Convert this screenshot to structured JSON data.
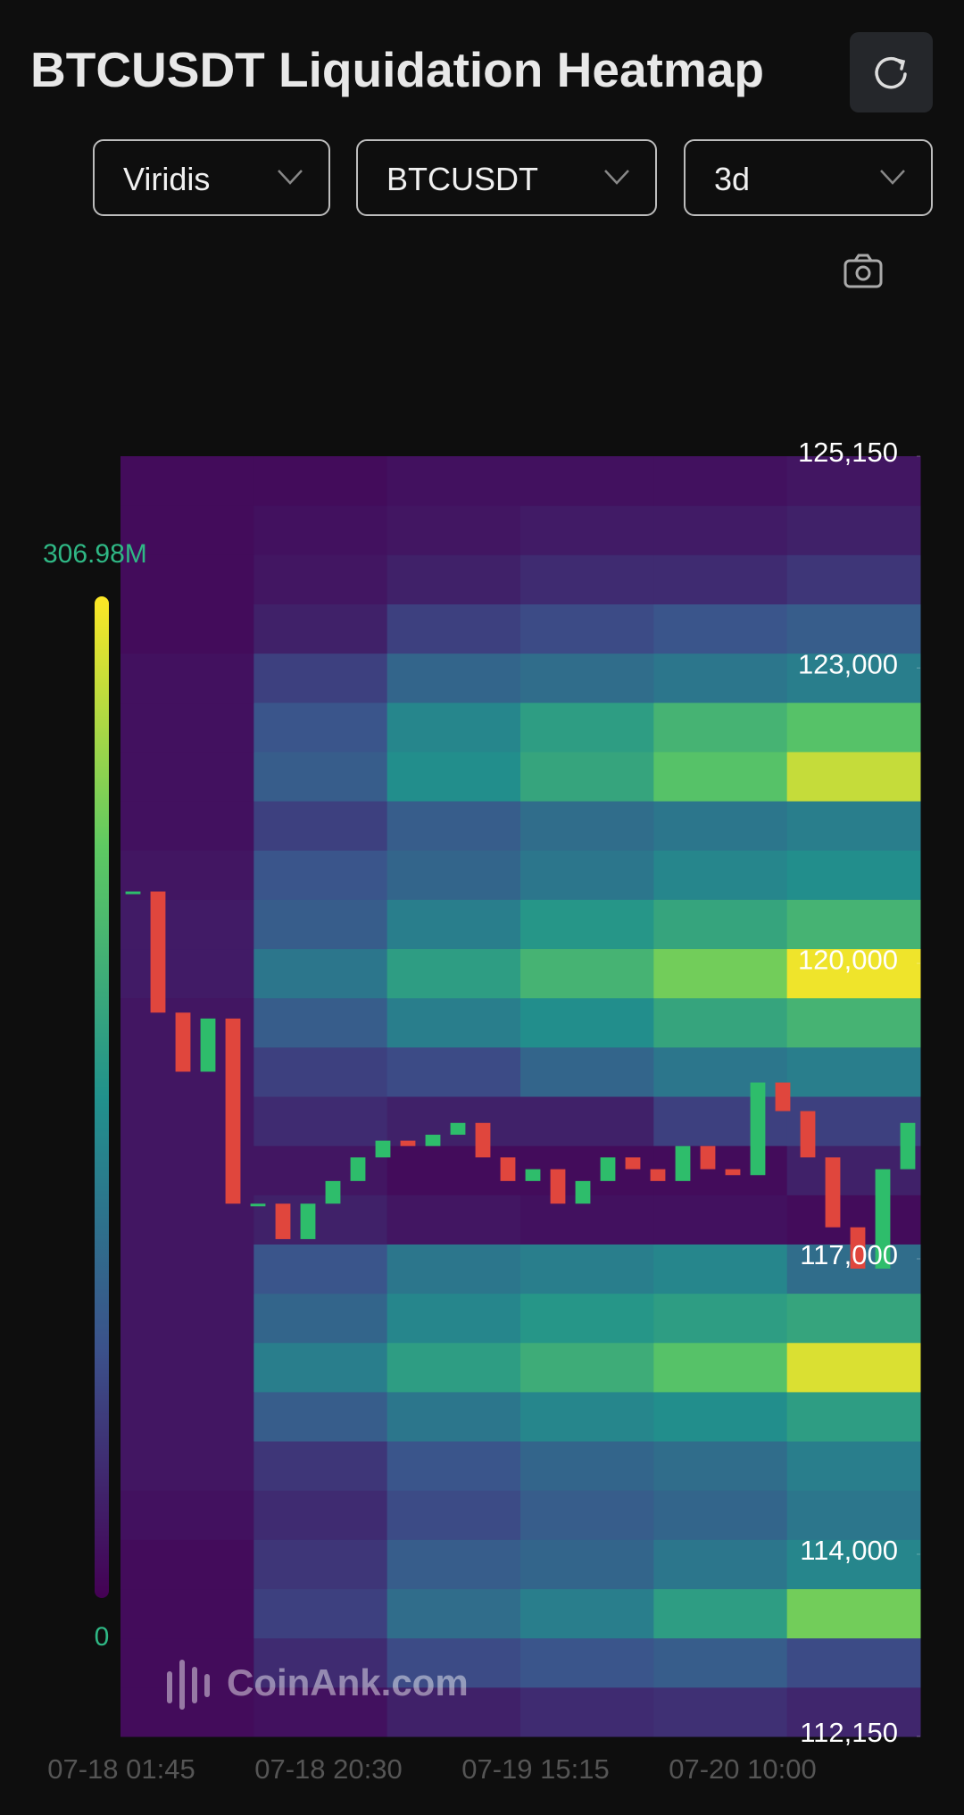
{
  "header": {
    "title": "BTCUSDT Liquidation Heatmap"
  },
  "controls": {
    "palette": "Viridis",
    "symbol": "BTCUSDT",
    "range": "3d"
  },
  "watermark": "CoinAnk.com",
  "chart_data": {
    "type": "heatmap",
    "x_labels": [
      "07-18 01:45",
      "07-18 20:30",
      "07-19 15:15",
      "07-20 10:00"
    ],
    "ylim": [
      112150,
      125150
    ],
    "yticks": [
      {
        "value": 112150,
        "label": "112,150"
      },
      {
        "value": 114000,
        "label": "114,000"
      },
      {
        "value": 117000,
        "label": "117,000"
      },
      {
        "value": 120000,
        "label": "120,000"
      },
      {
        "value": 123000,
        "label": "123,000"
      },
      {
        "value": 125150,
        "label": "125,150"
      }
    ],
    "colorbar": {
      "colormap": "viridis",
      "zlim": [
        0,
        306.98
      ],
      "ticks": [
        0,
        {
          "value": 306.98,
          "label": "306.98M"
        }
      ]
    },
    "heatmap": {
      "price_bins": [
        112150,
        112650,
        113150,
        113650,
        114150,
        114650,
        115150,
        115650,
        116150,
        116650,
        117150,
        117650,
        118150,
        118650,
        119150,
        119650,
        120150,
        120650,
        121150,
        121650,
        122150,
        122650,
        123150,
        123650,
        124150,
        124650,
        125150
      ],
      "values": [
        [
          10,
          15,
          30,
          40,
          45,
          35
        ],
        [
          10,
          40,
          70,
          80,
          90,
          70
        ],
        [
          10,
          60,
          110,
          130,
          170,
          240
        ],
        [
          10,
          50,
          90,
          100,
          120,
          140
        ],
        [
          15,
          40,
          70,
          90,
          100,
          120
        ],
        [
          20,
          50,
          80,
          100,
          110,
          130
        ],
        [
          20,
          90,
          120,
          140,
          150,
          170
        ],
        [
          20,
          130,
          170,
          190,
          220,
          290
        ],
        [
          20,
          100,
          140,
          160,
          170,
          180
        ],
        [
          20,
          80,
          120,
          130,
          140,
          110
        ],
        [
          20,
          30,
          20,
          15,
          15,
          10
        ],
        [
          20,
          20,
          10,
          10,
          10,
          30
        ],
        [
          20,
          40,
          30,
          30,
          60,
          60
        ],
        [
          20,
          60,
          70,
          100,
          120,
          130
        ],
        [
          20,
          90,
          130,
          150,
          180,
          200
        ],
        [
          25,
          120,
          170,
          200,
          240,
          300
        ],
        [
          25,
          90,
          130,
          160,
          180,
          200
        ],
        [
          20,
          80,
          100,
          120,
          140,
          150
        ],
        [
          15,
          60,
          90,
          110,
          120,
          130
        ],
        [
          15,
          90,
          150,
          180,
          220,
          280
        ],
        [
          15,
          80,
          140,
          170,
          200,
          220
        ],
        [
          15,
          60,
          100,
          110,
          120,
          130
        ],
        [
          10,
          30,
          60,
          70,
          80,
          90
        ],
        [
          10,
          20,
          30,
          40,
          40,
          50
        ],
        [
          10,
          15,
          20,
          25,
          25,
          30
        ],
        [
          10,
          10,
          15,
          15,
          15,
          20
        ]
      ]
    },
    "price": {
      "up_color": "#2ebd6b",
      "down_color": "#e0463d",
      "values": [
        120730,
        119500,
        118900,
        119440,
        117560,
        117560,
        117200,
        117560,
        117790,
        118030,
        118200,
        118145,
        118260,
        118380,
        118030,
        117790,
        117910,
        117560,
        117790,
        118030,
        117910,
        117790,
        118145,
        117910,
        117850,
        118790,
        118500,
        118030,
        117320,
        116900,
        117910,
        118380
      ]
    }
  }
}
